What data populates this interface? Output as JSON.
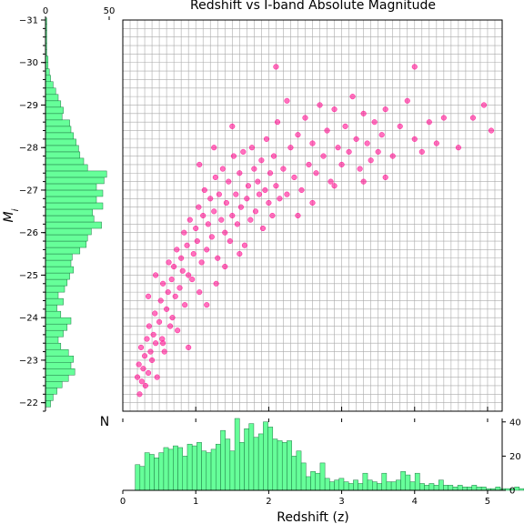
{
  "chart_data": [
    {
      "type": "scatter",
      "title": "Redshift vs I-band Absolute Magnitude",
      "xlabel": "Redshift (z)",
      "ylabel": "M_i",
      "ylabel_main": "M",
      "ylabel_sub": "i",
      "xlim": [
        0,
        5.2
      ],
      "ylim": [
        -21.8,
        -31
      ],
      "y_inverted": true,
      "x_ticks": [
        "0",
        "1",
        "2",
        "3",
        "4",
        "5"
      ],
      "y_ticks": [
        "−22",
        "−23",
        "−24",
        "−25",
        "−26",
        "−27",
        "−28",
        "−29",
        "−30",
        "−31"
      ],
      "grid": true,
      "marker_color": "#ff1493",
      "points": [
        [
          0.2,
          -22.6
        ],
        [
          0.22,
          -22.9
        ],
        [
          0.23,
          -22.2
        ],
        [
          0.25,
          -23.3
        ],
        [
          0.26,
          -22.5
        ],
        [
          0.28,
          -22.8
        ],
        [
          0.3,
          -23.1
        ],
        [
          0.31,
          -22.4
        ],
        [
          0.33,
          -23.5
        ],
        [
          0.35,
          -22.7
        ],
        [
          0.36,
          -23.8
        ],
        [
          0.38,
          -23.2
        ],
        [
          0.4,
          -23.0
        ],
        [
          0.42,
          -23.6
        ],
        [
          0.44,
          -24.1
        ],
        [
          0.45,
          -23.4
        ],
        [
          0.47,
          -22.6
        ],
        [
          0.5,
          -23.9
        ],
        [
          0.52,
          -24.4
        ],
        [
          0.54,
          -23.5
        ],
        [
          0.55,
          -24.8
        ],
        [
          0.57,
          -23.2
        ],
        [
          0.6,
          -24.2
        ],
        [
          0.62,
          -24.6
        ],
        [
          0.63,
          -25.3
        ],
        [
          0.65,
          -23.8
        ],
        [
          0.67,
          -24.9
        ],
        [
          0.7,
          -25.2
        ],
        [
          0.72,
          -24.5
        ],
        [
          0.74,
          -25.6
        ],
        [
          0.75,
          -23.7
        ],
        [
          0.78,
          -24.7
        ],
        [
          0.8,
          -25.4
        ],
        [
          0.82,
          -25.1
        ],
        [
          0.84,
          -26.0
        ],
        [
          0.85,
          -24.3
        ],
        [
          0.88,
          -25.7
        ],
        [
          0.9,
          -25.0
        ],
        [
          0.92,
          -26.3
        ],
        [
          0.95,
          -24.9
        ],
        [
          0.97,
          -25.5
        ],
        [
          1.0,
          -26.1
        ],
        [
          1.02,
          -25.8
        ],
        [
          1.04,
          -26.6
        ],
        [
          1.05,
          -24.6
        ],
        [
          1.08,
          -25.3
        ],
        [
          1.1,
          -26.4
        ],
        [
          1.12,
          -27.0
        ],
        [
          1.15,
          -25.6
        ],
        [
          1.17,
          -26.2
        ],
        [
          1.2,
          -26.8
        ],
        [
          1.22,
          -25.9
        ],
        [
          1.25,
          -26.5
        ],
        [
          1.27,
          -27.3
        ],
        [
          1.3,
          -25.4
        ],
        [
          1.32,
          -26.9
        ],
        [
          1.35,
          -26.3
        ],
        [
          1.37,
          -27.5
        ],
        [
          1.4,
          -26.0
        ],
        [
          1.42,
          -26.7
        ],
        [
          1.45,
          -27.2
        ],
        [
          1.47,
          -25.8
        ],
        [
          1.5,
          -26.4
        ],
        [
          1.52,
          -27.8
        ],
        [
          1.55,
          -26.9
        ],
        [
          1.57,
          -26.2
        ],
        [
          1.6,
          -27.4
        ],
        [
          1.62,
          -26.6
        ],
        [
          1.65,
          -27.9
        ],
        [
          1.67,
          -25.7
        ],
        [
          1.7,
          -26.8
        ],
        [
          1.72,
          -27.1
        ],
        [
          1.75,
          -26.3
        ],
        [
          1.77,
          -28.0
        ],
        [
          1.8,
          -27.5
        ],
        [
          1.82,
          -26.5
        ],
        [
          1.85,
          -27.2
        ],
        [
          1.87,
          -26.9
        ],
        [
          1.9,
          -27.7
        ],
        [
          1.92,
          -26.1
        ],
        [
          1.95,
          -27.0
        ],
        [
          1.97,
          -28.2
        ],
        [
          2.0,
          -26.7
        ],
        [
          2.02,
          -27.4
        ],
        [
          2.05,
          -26.4
        ],
        [
          2.07,
          -27.8
        ],
        [
          2.1,
          -27.1
        ],
        [
          2.12,
          -28.6
        ],
        [
          2.15,
          -26.8
        ],
        [
          2.2,
          -27.5
        ],
        [
          2.25,
          -26.9
        ],
        [
          2.3,
          -28.0
        ],
        [
          2.35,
          -27.3
        ],
        [
          2.4,
          -28.3
        ],
        [
          2.45,
          -27.0
        ],
        [
          2.5,
          -28.7
        ],
        [
          2.55,
          -27.6
        ],
        [
          2.6,
          -28.1
        ],
        [
          2.65,
          -27.4
        ],
        [
          2.7,
          -29.0
        ],
        [
          2.75,
          -27.8
        ],
        [
          2.8,
          -28.4
        ],
        [
          2.85,
          -27.2
        ],
        [
          2.9,
          -28.9
        ],
        [
          2.95,
          -28.0
        ],
        [
          3.0,
          -27.6
        ],
        [
          3.05,
          -28.5
        ],
        [
          3.1,
          -27.9
        ],
        [
          3.15,
          -29.2
        ],
        [
          3.2,
          -28.2
        ],
        [
          3.25,
          -27.5
        ],
        [
          3.3,
          -28.8
        ],
        [
          3.35,
          -28.1
        ],
        [
          3.4,
          -27.7
        ],
        [
          3.45,
          -28.6
        ],
        [
          3.5,
          -27.9
        ],
        [
          3.55,
          -28.3
        ],
        [
          3.6,
          -28.9
        ],
        [
          3.7,
          -27.8
        ],
        [
          3.8,
          -28.5
        ],
        [
          3.9,
          -29.1
        ],
        [
          4.0,
          -28.2
        ],
        [
          4.1,
          -27.9
        ],
        [
          4.2,
          -28.6
        ],
        [
          4.3,
          -28.1
        ],
        [
          4.4,
          -28.7
        ],
        [
          4.6,
          -28.0
        ],
        [
          4.8,
          -28.7
        ],
        [
          4.95,
          -29.0
        ],
        [
          5.05,
          -28.4
        ],
        [
          4.0,
          -29.9
        ],
        [
          2.1,
          -29.9
        ],
        [
          0.55,
          -23.4
        ],
        [
          0.68,
          -24.0
        ],
        [
          1.28,
          -24.8
        ],
        [
          1.15,
          -24.3
        ],
        [
          0.9,
          -23.3
        ],
        [
          1.4,
          -25.2
        ],
        [
          1.6,
          -25.5
        ],
        [
          2.4,
          -26.4
        ],
        [
          2.6,
          -26.7
        ],
        [
          2.9,
          -27.1
        ],
        [
          3.3,
          -27.2
        ],
        [
          3.6,
          -27.3
        ],
        [
          1.25,
          -28.0
        ],
        [
          1.05,
          -27.6
        ],
        [
          1.5,
          -28.5
        ],
        [
          2.25,
          -29.1
        ],
        [
          0.35,
          -24.5
        ],
        [
          0.45,
          -25.0
        ]
      ]
    },
    {
      "type": "bar",
      "title": "",
      "xlabel": "Redshift (z)",
      "ylabel": "",
      "corner_label": "N",
      "orientation": "vertical",
      "xlim": [
        0,
        5.2
      ],
      "ylim": [
        0,
        42
      ],
      "bin_width": 0.065,
      "x_ticks": [
        "0",
        "1",
        "2",
        "3",
        "4",
        "5"
      ],
      "y_ticks": [
        "0",
        "20",
        "40"
      ],
      "color": "#66ff99",
      "edge_color": "#1f7a45",
      "bin_start": 0.17,
      "values": [
        15,
        14,
        22,
        21,
        19,
        22,
        25,
        24,
        26,
        25,
        20,
        27,
        26,
        28,
        23,
        22,
        24,
        27,
        35,
        30,
        23,
        42,
        28,
        36,
        39,
        31,
        33,
        40,
        37,
        30,
        29,
        28,
        29,
        20,
        23,
        16,
        8,
        11,
        10,
        16,
        7,
        5,
        6,
        7,
        5,
        4,
        6,
        4,
        10,
        6,
        5,
        4,
        10,
        5,
        5,
        6,
        11,
        9,
        5,
        10,
        4,
        3,
        4,
        3,
        6,
        3,
        3,
        2,
        3,
        2,
        2,
        3,
        2,
        2,
        1,
        1,
        2,
        1,
        1,
        1,
        2,
        1,
        1,
        1,
        1,
        1,
        1,
        1,
        1,
        1
      ]
    },
    {
      "type": "bar",
      "title": "",
      "orientation": "horizontal",
      "ylabel": "M_i",
      "xlim": [
        0,
        50
      ],
      "ylim": [
        -21.8,
        -31
      ],
      "bin_width": 0.15,
      "x_ticks": [
        "0",
        "50"
      ],
      "color": "#66ff99",
      "edge_color": "#1f7a45",
      "bin_start": -21.9,
      "values": [
        4,
        6,
        9,
        13,
        18,
        23,
        20,
        22,
        18,
        12,
        10,
        14,
        17,
        20,
        12,
        9,
        14,
        10,
        15,
        17,
        19,
        22,
        20,
        21,
        27,
        32,
        33,
        36,
        44,
        38,
        37,
        45,
        40,
        45,
        40,
        46,
        48,
        33,
        30,
        27,
        26,
        24,
        22,
        20,
        19,
        13,
        14,
        12,
        10,
        8,
        6,
        4,
        3,
        2,
        2,
        1,
        1,
        1,
        1,
        1,
        1,
        0,
        0,
        0
      ]
    }
  ]
}
